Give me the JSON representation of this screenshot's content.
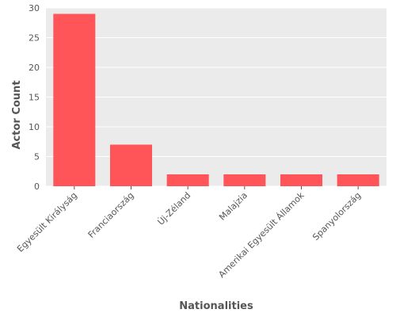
{
  "chart_data": {
    "type": "bar",
    "title": "",
    "xlabel": "Nationalities",
    "ylabel": "Actor Count",
    "categories": [
      "Egyesült Királyság",
      "Franciaország",
      "Új-Zéland",
      "Malajzia",
      "Amerikai Egyesült Államok",
      "Spanyolország"
    ],
    "values": [
      29,
      7,
      2,
      2,
      2,
      2
    ],
    "ylim": [
      0,
      30
    ],
    "yticks": [
      "0",
      "5",
      "10",
      "15",
      "20",
      "25",
      "30"
    ],
    "grid": true,
    "legend": "none",
    "colors": {
      "bar": "#ff5559",
      "plot_bg": "#ebebeb",
      "grid": "#ffffff"
    }
  }
}
